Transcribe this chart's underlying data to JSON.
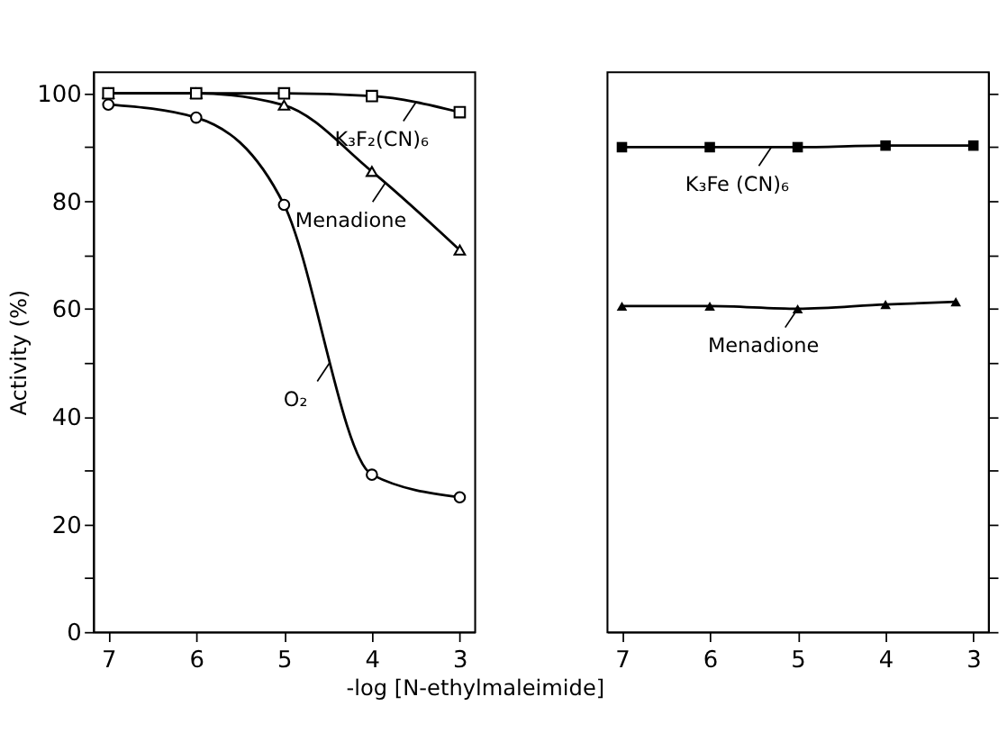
{
  "chart_data": [
    {
      "type": "line",
      "xlabel": "-log [N-ethylmaleimide]",
      "ylabel": "Activity (%)",
      "xlim": [
        7.17,
        2.83
      ],
      "ylim": [
        0,
        104
      ],
      "xticks": [
        7,
        6,
        5,
        4,
        3
      ],
      "yticks": [
        0,
        {
          "value": 10,
          "label": null
        },
        20,
        {
          "value": 30,
          "label": null
        },
        40,
        {
          "value": 50,
          "label": null
        },
        60,
        {
          "value": 70,
          "label": null
        },
        80,
        {
          "value": 90,
          "label": null
        },
        100
      ],
      "grid": false,
      "x": [
        7,
        6,
        5,
        4,
        3
      ],
      "series": [
        {
          "color": "#000000",
          "marker": "circle",
          "values": [
            97.9,
            95.5,
            79.3,
            29.2,
            25.0
          ]
        },
        {
          "color": "#000000",
          "marker": "triangle",
          "values": [
            100,
            100,
            97.8,
            85.5,
            70.9
          ]
        },
        {
          "color": "#000000",
          "marker": "square",
          "values": [
            100,
            100,
            100,
            99.5,
            96.5
          ]
        }
      ],
      "annotations": [
        {
          "text": "O₂",
          "x": 4.48,
          "y": 50
        },
        {
          "text": "Menadione",
          "x": 3.85,
          "y": 83.3
        },
        {
          "text": "K₃F₂(CN)₆",
          "x": 3.5,
          "y": 98.3
        }
      ]
    },
    {
      "type": "line",
      "xlim": [
        7.17,
        2.83
      ],
      "ylim": [
        0,
        104
      ],
      "xticks": [
        7,
        6,
        5,
        4,
        3
      ],
      "yticks": [
        {
          "value": 0,
          "label": null
        },
        {
          "value": 10,
          "label": null
        },
        {
          "value": 20,
          "label": null
        },
        {
          "value": 30,
          "label": null
        },
        {
          "value": 40,
          "label": null
        },
        {
          "value": 50,
          "label": null
        },
        {
          "value": 60,
          "label": null
        },
        {
          "value": 70,
          "label": null
        },
        {
          "value": 80,
          "label": null
        },
        {
          "value": 90,
          "label": null
        },
        {
          "value": 100,
          "label": null
        }
      ],
      "grid": false,
      "tick_labels": "x",
      "series": [
        {
          "color": "#000000",
          "marker": "square",
          "x": [
            7,
            6,
            5,
            4,
            3
          ],
          "values": [
            90,
            90,
            90,
            90.3,
            90.3
          ]
        },
        {
          "color": "#000000",
          "marker": "triangle",
          "x": [
            7,
            6,
            5,
            4,
            3.2
          ],
          "values": [
            60.5,
            60.5,
            60,
            60.8,
            61.3
          ]
        }
      ],
      "annotations": [
        {
          "text": "K₃Fe (CN)₆",
          "x": 5.3,
          "y": 90
        },
        {
          "text": "Menadione",
          "x": 5,
          "y": 60
        }
      ]
    }
  ]
}
